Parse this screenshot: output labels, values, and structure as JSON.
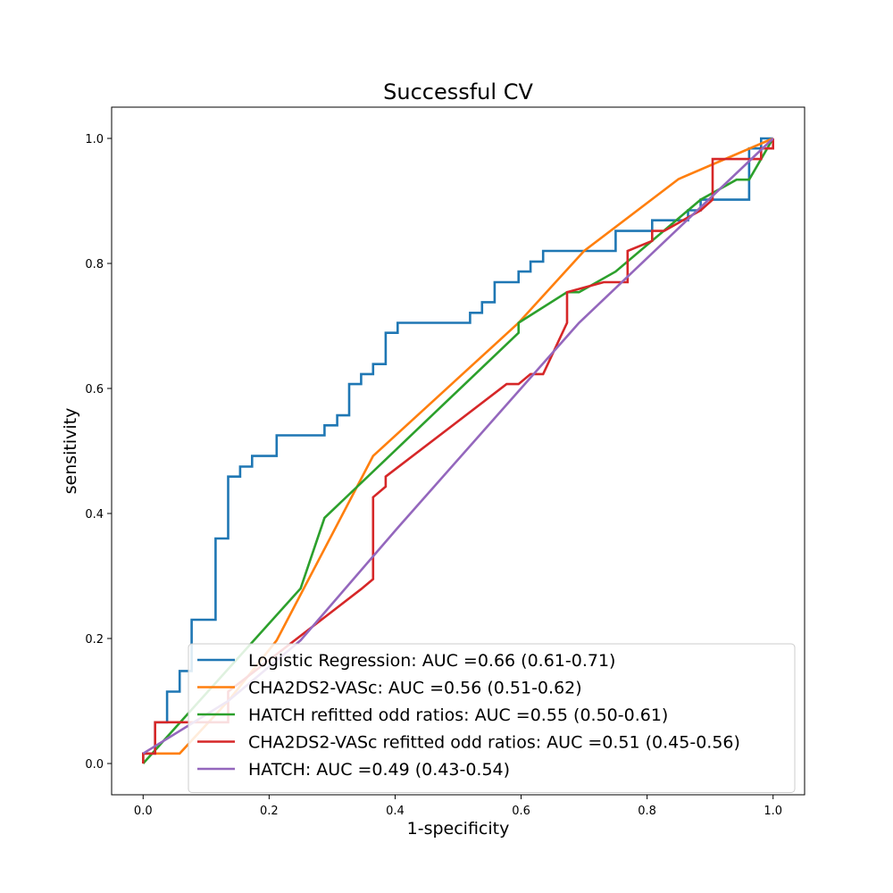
{
  "chart_data": {
    "type": "line",
    "title": "Successful CV",
    "xlabel": "1-specificity",
    "ylabel": "sensitivity",
    "xlim": [
      -0.05,
      1.05
    ],
    "ylim": [
      -0.05,
      1.05
    ],
    "x_ticks": [
      "0.0",
      "0.2",
      "0.4",
      "0.6",
      "0.8",
      "1.0"
    ],
    "y_ticks": [
      "0.0",
      "0.2",
      "0.4",
      "0.6",
      "0.8",
      "1.0"
    ],
    "grid": false,
    "legend_position": "bottom-right",
    "series": [
      {
        "name": "Logistic Regression: AUC =0.66 (0.61-0.71)",
        "color": "#1f77b4",
        "step": true,
        "points": [
          [
            0,
            0
          ],
          [
            0,
            0.016
          ],
          [
            0.019,
            0.016
          ],
          [
            0.019,
            0.066
          ],
          [
            0.038,
            0.066
          ],
          [
            0.038,
            0.115
          ],
          [
            0.058,
            0.115
          ],
          [
            0.058,
            0.148
          ],
          [
            0.077,
            0.148
          ],
          [
            0.077,
            0.23
          ],
          [
            0.115,
            0.23
          ],
          [
            0.115,
            0.36
          ],
          [
            0.135,
            0.36
          ],
          [
            0.135,
            0.459
          ],
          [
            0.154,
            0.459
          ],
          [
            0.154,
            0.475
          ],
          [
            0.173,
            0.475
          ],
          [
            0.173,
            0.492
          ],
          [
            0.212,
            0.492
          ],
          [
            0.212,
            0.525
          ],
          [
            0.288,
            0.525
          ],
          [
            0.288,
            0.541
          ],
          [
            0.308,
            0.541
          ],
          [
            0.308,
            0.557
          ],
          [
            0.327,
            0.557
          ],
          [
            0.327,
            0.607
          ],
          [
            0.346,
            0.607
          ],
          [
            0.346,
            0.623
          ],
          [
            0.365,
            0.623
          ],
          [
            0.365,
            0.639
          ],
          [
            0.385,
            0.639
          ],
          [
            0.385,
            0.689
          ],
          [
            0.404,
            0.689
          ],
          [
            0.404,
            0.705
          ],
          [
            0.519,
            0.705
          ],
          [
            0.519,
            0.721
          ],
          [
            0.538,
            0.721
          ],
          [
            0.538,
            0.738
          ],
          [
            0.558,
            0.738
          ],
          [
            0.558,
            0.77
          ],
          [
            0.596,
            0.77
          ],
          [
            0.596,
            0.787
          ],
          [
            0.615,
            0.787
          ],
          [
            0.615,
            0.803
          ],
          [
            0.635,
            0.803
          ],
          [
            0.635,
            0.82
          ],
          [
            0.75,
            0.82
          ],
          [
            0.75,
            0.852
          ],
          [
            0.808,
            0.852
          ],
          [
            0.808,
            0.869
          ],
          [
            0.865,
            0.869
          ],
          [
            0.865,
            0.885
          ],
          [
            0.885,
            0.885
          ],
          [
            0.885,
            0.902
          ],
          [
            0.962,
            0.902
          ],
          [
            0.962,
            0.984
          ],
          [
            0.981,
            0.984
          ],
          [
            0.981,
            1.0
          ],
          [
            1.0,
            1.0
          ]
        ]
      },
      {
        "name": "CHA2DS2-VASc: AUC =0.56 (0.51-0.62)",
        "color": "#ff7f0e",
        "step": false,
        "points": [
          [
            0,
            0
          ],
          [
            0,
            0.016
          ],
          [
            0.058,
            0.016
          ],
          [
            0.135,
            0.1
          ],
          [
            0.212,
            0.197
          ],
          [
            0.365,
            0.492
          ],
          [
            0.596,
            0.705
          ],
          [
            0.7,
            0.82
          ],
          [
            0.85,
            0.935
          ],
          [
            1.0,
            1.0
          ]
        ]
      },
      {
        "name": "HATCH refitted odd ratios: AUC =0.55 (0.50-0.61)",
        "color": "#2ca02c",
        "step": false,
        "points": [
          [
            0,
            0
          ],
          [
            0.25,
            0.28
          ],
          [
            0.288,
            0.393
          ],
          [
            0.596,
            0.689
          ],
          [
            0.596,
            0.705
          ],
          [
            0.673,
            0.754
          ],
          [
            0.692,
            0.754
          ],
          [
            0.75,
            0.787
          ],
          [
            0.885,
            0.902
          ],
          [
            0.942,
            0.934
          ],
          [
            0.962,
            0.934
          ],
          [
            1.0,
            1.0
          ]
        ]
      },
      {
        "name": "CHA2DS2-VASc refitted odd ratios: AUC =0.51 (0.45-0.56)",
        "color": "#d62728",
        "step": false,
        "points": [
          [
            0,
            0
          ],
          [
            0,
            0.016
          ],
          [
            0.019,
            0.016
          ],
          [
            0.019,
            0.066
          ],
          [
            0.135,
            0.066
          ],
          [
            0.135,
            0.115
          ],
          [
            0.346,
            0.279
          ],
          [
            0.365,
            0.295
          ],
          [
            0.365,
            0.426
          ],
          [
            0.385,
            0.443
          ],
          [
            0.385,
            0.459
          ],
          [
            0.577,
            0.607
          ],
          [
            0.596,
            0.607
          ],
          [
            0.615,
            0.623
          ],
          [
            0.635,
            0.623
          ],
          [
            0.673,
            0.705
          ],
          [
            0.673,
            0.754
          ],
          [
            0.731,
            0.77
          ],
          [
            0.769,
            0.77
          ],
          [
            0.769,
            0.82
          ],
          [
            0.808,
            0.836
          ],
          [
            0.808,
            0.852
          ],
          [
            0.827,
            0.852
          ],
          [
            0.885,
            0.885
          ],
          [
            0.904,
            0.902
          ],
          [
            0.904,
            0.967
          ],
          [
            0.981,
            0.967
          ],
          [
            0.981,
            0.984
          ],
          [
            1.0,
            0.984
          ],
          [
            1.0,
            1.0
          ]
        ]
      },
      {
        "name": "HATCH: AUC =0.49 (0.43-0.54)",
        "color": "#9467bd",
        "step": false,
        "points": [
          [
            0,
            0.016
          ],
          [
            0.135,
            0.1
          ],
          [
            0.25,
            0.197
          ],
          [
            0.404,
            0.377
          ],
          [
            0.692,
            0.705
          ],
          [
            1.0,
            1.0
          ]
        ]
      }
    ]
  }
}
